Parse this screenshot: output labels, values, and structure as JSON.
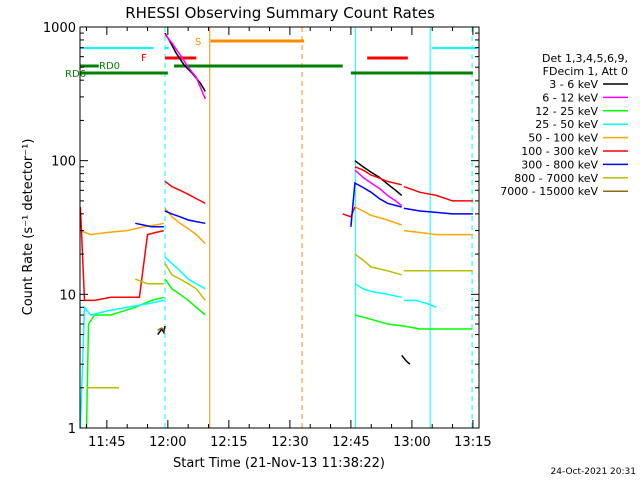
{
  "chart_data": {
    "type": "line",
    "title": "RHESSI Observing Summary Count Rates",
    "xlabel": "Start Time (21-Nov-13 11:38:22)",
    "ylabel": "Count Rate (s⁻¹ detector⁻¹)",
    "y_scale": "log",
    "ylim": [
      1,
      1000
    ],
    "xlim_minutes_of_day": [
      698.4,
      796.5
    ],
    "x_ticks": [
      {
        "label": "11:45",
        "t": 705
      },
      {
        "label": "12:00",
        "t": 720
      },
      {
        "label": "12:15",
        "t": 735
      },
      {
        "label": "12:30",
        "t": 750
      },
      {
        "label": "12:45",
        "t": 765
      },
      {
        "label": "13:00",
        "t": 780
      },
      {
        "label": "13:15",
        "t": 795
      }
    ],
    "y_ticks": [
      {
        "label": "1",
        "v": 1
      },
      {
        "label": "10",
        "v": 10
      },
      {
        "label": "100",
        "v": 100
      },
      {
        "label": "1000",
        "v": 1000
      }
    ],
    "legend_header": [
      "Det 1,3,4,5,6,9,",
      "FDecim 1, Att 0"
    ],
    "legend_placement": "right",
    "footer_date": "24-Oct-2021 20:31",
    "series": [
      {
        "name": "3 - 6 keV",
        "color": "#000000",
        "segments": [
          [
            [
              717.5,
              5.0
            ],
            [
              718.5,
              5.5
            ],
            [
              719.0,
              5.2
            ],
            [
              719.3,
              5.8
            ]
          ],
          [
            [
              719.3,
              900
            ],
            [
              720.5,
              780
            ],
            [
              722,
              640
            ],
            [
              724,
              520
            ],
            [
              726,
              450
            ],
            [
              728,
              380
            ],
            [
              729.2,
              330
            ]
          ],
          [
            [
              766,
              100
            ],
            [
              768,
              90
            ],
            [
              770,
              82
            ],
            [
              772,
              75
            ],
            [
              774,
              67
            ],
            [
              776,
              60
            ],
            [
              777.5,
              55
            ]
          ],
          [
            [
              777.5,
              3.5
            ],
            [
              778.5,
              3.2
            ],
            [
              779.5,
              3.0
            ]
          ]
        ]
      },
      {
        "name": "6 - 12 keV",
        "color": "#ff00ff",
        "segments": [
          [
            [
              719.3,
              880
            ],
            [
              721,
              760
            ],
            [
              723,
              620
            ],
            [
              725,
              500
            ],
            [
              727,
              420
            ],
            [
              729.2,
              290
            ]
          ],
          [
            [
              766,
              85
            ],
            [
              768,
              75
            ],
            [
              770,
              68
            ],
            [
              772,
              62
            ],
            [
              774,
              55
            ],
            [
              776,
              50
            ],
            [
              777.5,
              46
            ]
          ]
        ]
      },
      {
        "name": "12 - 25 keV",
        "color": "#00ff00",
        "segments": [
          [
            [
              700,
              1.0
            ],
            [
              700.5,
              6.0
            ],
            [
              702,
              7.0
            ],
            [
              706,
              7.0
            ],
            [
              712,
              8.0
            ],
            [
              716,
              9.0
            ],
            [
              719,
              9.5
            ]
          ],
          [
            [
              719.3,
              13
            ],
            [
              721,
              11
            ],
            [
              723,
              10
            ],
            [
              725,
              9
            ],
            [
              727,
              8
            ],
            [
              729.2,
              7
            ]
          ],
          [
            [
              766,
              7.0
            ],
            [
              770,
              6.5
            ],
            [
              774,
              6.0
            ],
            [
              778,
              5.8
            ],
            [
              782,
              5.5
            ],
            [
              786,
              5.5
            ],
            [
              792,
              5.5
            ],
            [
              794.8,
              5.5
            ]
          ]
        ]
      },
      {
        "name": "25 - 50 keV",
        "color": "#00ffff",
        "segments": [
          [
            [
              698.5,
              1.0
            ],
            [
              699.5,
              8.0
            ],
            [
              701,
              7.0
            ],
            [
              705,
              7.5
            ],
            [
              710,
              8.0
            ],
            [
              715,
              8.5
            ],
            [
              719,
              9.0
            ]
          ],
          [
            [
              719.3,
              19
            ],
            [
              721,
              17
            ],
            [
              723,
              15
            ],
            [
              725,
              13
            ],
            [
              727,
              12
            ],
            [
              729.2,
              11
            ]
          ],
          [
            [
              766,
              12
            ],
            [
              768,
              11
            ],
            [
              770,
              10.5
            ],
            [
              774,
              10
            ],
            [
              777.5,
              9.5
            ]
          ],
          [
            [
              778,
              9
            ],
            [
              781,
              9
            ],
            [
              784,
              8.5
            ],
            [
              786,
              8
            ]
          ]
        ]
      },
      {
        "name": "50 - 100 keV",
        "color": "#ffa500",
        "segments": [
          [
            [
              698.5,
              30
            ],
            [
              701,
              28
            ],
            [
              705,
              29
            ],
            [
              710,
              30
            ],
            [
              714,
              32
            ],
            [
              717,
              33
            ],
            [
              719,
              34
            ]
          ],
          [
            [
              719.3,
              44
            ],
            [
              721,
              38
            ],
            [
              723,
              34
            ],
            [
              725,
              31
            ],
            [
              727,
              28
            ],
            [
              729.2,
              24
            ]
          ],
          [
            [
              766,
              45
            ],
            [
              768,
              42
            ],
            [
              770,
              39
            ],
            [
              774,
              36
            ],
            [
              777.5,
              33
            ]
          ],
          [
            [
              778,
              30
            ],
            [
              782,
              29
            ],
            [
              786,
              28
            ],
            [
              790,
              28
            ],
            [
              794,
              28
            ],
            [
              795,
              28
            ]
          ]
        ]
      },
      {
        "name": "100 - 300 keV",
        "color": "#ff0000",
        "segments": [
          [
            [
              698.5,
              45
            ],
            [
              699.5,
              9
            ],
            [
              702,
              9
            ],
            [
              706,
              9.5
            ],
            [
              710,
              9.5
            ],
            [
              713,
              9.5
            ],
            [
              715,
              28
            ],
            [
              717,
              29
            ],
            [
              719,
              30
            ]
          ],
          [
            [
              719.3,
              70
            ],
            [
              721,
              64
            ],
            [
              723,
              60
            ],
            [
              725,
              56
            ],
            [
              727,
              52
            ],
            [
              729.2,
              48
            ]
          ],
          [
            [
              763,
              40
            ],
            [
              765,
              38
            ],
            [
              766,
              45
            ]
          ],
          [
            [
              766,
              90
            ],
            [
              768,
              85
            ],
            [
              770,
              78
            ],
            [
              772,
              74
            ],
            [
              774,
              70
            ],
            [
              777.5,
              66
            ]
          ],
          [
            [
              778,
              64
            ],
            [
              782,
              58
            ],
            [
              786,
              55
            ],
            [
              790,
              50
            ],
            [
              794,
              50
            ],
            [
              795,
              50
            ]
          ]
        ]
      },
      {
        "name": "300 - 800 keV",
        "color": "#0000ff",
        "segments": [
          [
            [
              712,
              34
            ],
            [
              714,
              33
            ],
            [
              716,
              32
            ],
            [
              719,
              32
            ]
          ],
          [
            [
              719.3,
              42
            ],
            [
              721,
              40
            ],
            [
              723,
              38
            ],
            [
              725,
              36
            ],
            [
              727,
              35
            ],
            [
              729.2,
              34
            ]
          ],
          [
            [
              765,
              32
            ],
            [
              766,
              68
            ],
            [
              768,
              63
            ],
            [
              770,
              58
            ],
            [
              772,
              52
            ],
            [
              774,
              48
            ],
            [
              777.5,
              45
            ]
          ],
          [
            [
              778,
              44
            ],
            [
              782,
              42
            ],
            [
              786,
              41
            ],
            [
              790,
              40
            ],
            [
              794,
              40
            ],
            [
              795,
              40
            ]
          ]
        ]
      },
      {
        "name": "800 - 7000 keV",
        "color": "#bcbc00",
        "segments": [
          [
            [
              700,
              2.0
            ],
            [
              702,
              2.0
            ],
            [
              706,
              2.0
            ],
            [
              708,
              2.0
            ]
          ],
          [
            [
              712,
              13
            ],
            [
              715,
              12
            ],
            [
              719,
              12
            ]
          ],
          [
            [
              719.3,
              17
            ],
            [
              721,
              14
            ],
            [
              723,
              13
            ],
            [
              725,
              12
            ],
            [
              727,
              11
            ],
            [
              729.2,
              9
            ]
          ],
          [
            [
              766,
              20
            ],
            [
              768,
              18
            ],
            [
              770,
              16
            ],
            [
              774,
              15
            ],
            [
              777.5,
              14
            ]
          ],
          [
            [
              778,
              15
            ],
            [
              782,
              15
            ],
            [
              786,
              15
            ],
            [
              790,
              15
            ],
            [
              794,
              15
            ],
            [
              795,
              15
            ]
          ]
        ]
      },
      {
        "name": "7000 - 15000 keV",
        "color": "#8b6914",
        "segments": [
          [
            [
              717.5,
              5.4
            ],
            [
              718.5,
              5.6
            ],
            [
              719.3,
              5.3
            ]
          ]
        ]
      }
    ],
    "flags": [
      {
        "label": "S",
        "color": "#ff8c00",
        "segments": [
          [
            730.5,
            753.5
          ]
        ],
        "level": 870
      },
      {
        "label": "F",
        "color": "#ff0000",
        "segments": [
          [
            719.3,
            727.0
          ],
          [
            769.0,
            779.0
          ]
        ],
        "level": 590
      },
      {
        "label": "RD0",
        "color": "#008000",
        "segments": [
          [
            698.4,
            703.0
          ],
          [
            721.5,
            763.0
          ]
        ],
        "level": 500
      },
      {
        "label": "RD6",
        "color": "#008000",
        "segments": [
          [
            698.4,
            720.0
          ],
          [
            765.0,
            795.0
          ]
        ],
        "level": 500
      }
    ],
    "cyan_flag_segments": [
      [
        698.4,
        716.5
      ],
      [
        719.3,
        720.2
      ],
      [
        785.0,
        796.0
      ]
    ],
    "vertical_lines": [
      {
        "t": 719.3,
        "color": "#00ffff",
        "style": "dash"
      },
      {
        "t": 730.3,
        "color": "#ff8c00",
        "style": "solid"
      },
      {
        "t": 753.0,
        "color": "#ff8c00",
        "style": "dash"
      },
      {
        "t": 766.1,
        "color": "#00ffff",
        "style": "solid"
      },
      {
        "t": 784.5,
        "color": "#00ffff",
        "style": "solid"
      },
      {
        "t": 794.8,
        "color": "#00ffff",
        "style": "dash"
      }
    ]
  }
}
